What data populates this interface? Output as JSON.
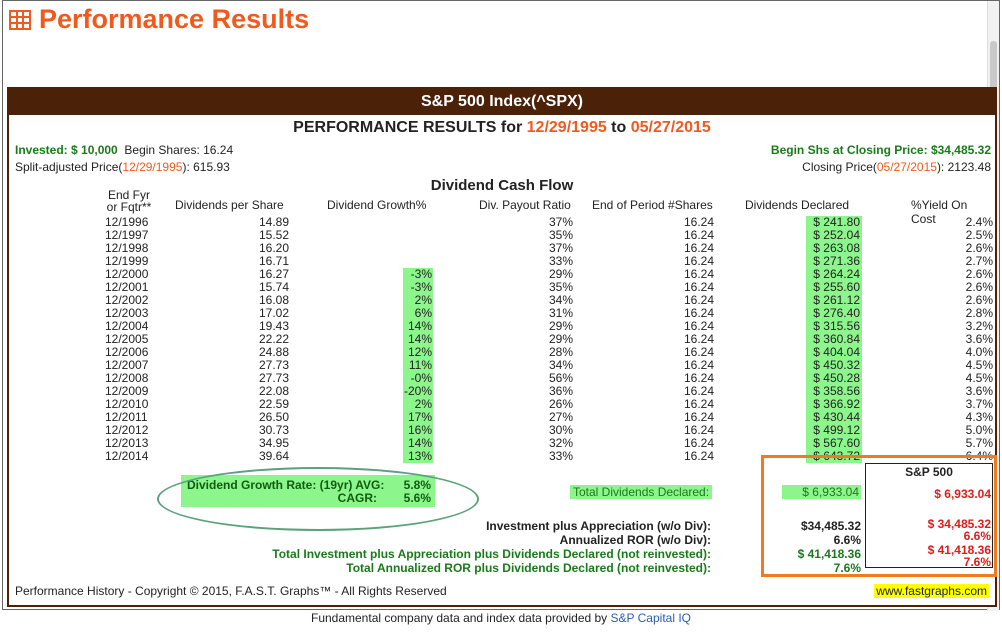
{
  "page": {
    "title": "Performance Results",
    "footer_note_prefix": "Fundamental company data and index data provided by ",
    "footer_note_link": "S&P Capital IQ"
  },
  "report": {
    "banner": "S&P 500 Index(^SPX)",
    "perf_title_prefix": "PERFORMANCE RESULTS for ",
    "start_date": "12/29/1995",
    "perf_title_mid": " to ",
    "end_date": "05/27/2015",
    "invested_label": "Invested: $ 10,000",
    "begin_shares_label": "Begin Shares: 16.24",
    "split_price_prefix": "Split-adjusted Price(",
    "split_price_date": "12/29/1995",
    "split_price_suffix": "): ",
    "split_price_value": "615.93",
    "begin_shs_closing": "Begin Shs at Closing Price: $34,485.32",
    "closing_price_prefix": "Closing Price(",
    "closing_price_date": "05/27/2015",
    "closing_price_suffix": "): ",
    "closing_price_value": "2123.48",
    "section_title": "Dividend Cash Flow",
    "columns": {
      "fyr": "End Fyr",
      "fqtr": "or Fqtr**",
      "dps": "Dividends per Share",
      "dg": "Dividend Growth%",
      "dpr": "Div. Payout Ratio",
      "eps": "End of Period #Shares",
      "dd": "Dividends Declared",
      "yoc": "%Yield On Cost"
    },
    "rows": [
      {
        "year": "12/1996",
        "dps": "14.89",
        "dg": "",
        "dpr": "37%",
        "eps": "16.24",
        "dd": "$ 241.80",
        "yoc": "2.4%"
      },
      {
        "year": "12/1997",
        "dps": "15.52",
        "dg": "",
        "dpr": "35%",
        "eps": "16.24",
        "dd": "$ 252.04",
        "yoc": "2.5%"
      },
      {
        "year": "12/1998",
        "dps": "16.20",
        "dg": "",
        "dpr": "37%",
        "eps": "16.24",
        "dd": "$ 263.08",
        "yoc": "2.6%"
      },
      {
        "year": "12/1999",
        "dps": "16.71",
        "dg": "",
        "dpr": "33%",
        "eps": "16.24",
        "dd": "$ 271.36",
        "yoc": "2.7%"
      },
      {
        "year": "12/2000",
        "dps": "16.27",
        "dg": "-3%",
        "dpr": "29%",
        "eps": "16.24",
        "dd": "$ 264.24",
        "yoc": "2.6%"
      },
      {
        "year": "12/2001",
        "dps": "15.74",
        "dg": "-3%",
        "dpr": "35%",
        "eps": "16.24",
        "dd": "$ 255.60",
        "yoc": "2.6%"
      },
      {
        "year": "12/2002",
        "dps": "16.08",
        "dg": "2%",
        "dpr": "34%",
        "eps": "16.24",
        "dd": "$ 261.12",
        "yoc": "2.6%"
      },
      {
        "year": "12/2003",
        "dps": "17.02",
        "dg": "6%",
        "dpr": "31%",
        "eps": "16.24",
        "dd": "$ 276.40",
        "yoc": "2.8%"
      },
      {
        "year": "12/2004",
        "dps": "19.43",
        "dg": "14%",
        "dpr": "29%",
        "eps": "16.24",
        "dd": "$ 315.56",
        "yoc": "3.2%"
      },
      {
        "year": "12/2005",
        "dps": "22.22",
        "dg": "14%",
        "dpr": "29%",
        "eps": "16.24",
        "dd": "$ 360.84",
        "yoc": "3.6%"
      },
      {
        "year": "12/2006",
        "dps": "24.88",
        "dg": "12%",
        "dpr": "28%",
        "eps": "16.24",
        "dd": "$ 404.04",
        "yoc": "4.0%"
      },
      {
        "year": "12/2007",
        "dps": "27.73",
        "dg": "11%",
        "dpr": "34%",
        "eps": "16.24",
        "dd": "$ 450.32",
        "yoc": "4.5%"
      },
      {
        "year": "12/2008",
        "dps": "27.73",
        "dg": "-0%",
        "dpr": "56%",
        "eps": "16.24",
        "dd": "$ 450.28",
        "yoc": "4.5%"
      },
      {
        "year": "12/2009",
        "dps": "22.08",
        "dg": "-20%",
        "dpr": "36%",
        "eps": "16.24",
        "dd": "$ 358.56",
        "yoc": "3.6%"
      },
      {
        "year": "12/2010",
        "dps": "22.59",
        "dg": "2%",
        "dpr": "26%",
        "eps": "16.24",
        "dd": "$ 366.92",
        "yoc": "3.7%"
      },
      {
        "year": "12/2011",
        "dps": "26.50",
        "dg": "17%",
        "dpr": "27%",
        "eps": "16.24",
        "dd": "$ 430.44",
        "yoc": "4.3%"
      },
      {
        "year": "12/2012",
        "dps": "30.73",
        "dg": "16%",
        "dpr": "30%",
        "eps": "16.24",
        "dd": "$ 499.12",
        "yoc": "5.0%"
      },
      {
        "year": "12/2013",
        "dps": "34.95",
        "dg": "14%",
        "dpr": "32%",
        "eps": "16.24",
        "dd": "$ 567.60",
        "yoc": "5.7%"
      },
      {
        "year": "12/2014",
        "dps": "39.64",
        "dg": "13%",
        "dpr": "33%",
        "eps": "16.24",
        "dd": "$ 643.72",
        "yoc": "6.4%"
      }
    ],
    "growth": {
      "avg_label": "Dividend Growth Rate: (19yr) AVG:",
      "avg_value": "5.8%",
      "cagr_label": "CAGR:",
      "cagr_value": "5.6%"
    },
    "total_dividends_label": "Total Dividends Declared:",
    "total_dividends_value": "$ 6,933.04",
    "sp_box_title": "S&P 500",
    "sp_total_dividends": "$ 6,933.04",
    "summary": [
      {
        "label": "Investment plus Appreciation (w/o Div):",
        "value": "$34,485.32",
        "sp": "$ 34,485.32",
        "green": false
      },
      {
        "label": "Annualized ROR (w/o Div):",
        "value": "6.6%",
        "sp": "6.6%",
        "green": false
      },
      {
        "label": "Total Investment plus Appreciation plus Dividends Declared (not reinvested):",
        "value": "$ 41,418.36",
        "sp": "$ 41,418.36",
        "green": true
      },
      {
        "label": "Total Annualized ROR plus Dividends Declared (not reinvested):",
        "value": "7.6%",
        "sp": "7.6%",
        "green": true
      }
    ],
    "copyright": "Performance History - Copyright © 2015, F.A.S.T. Graphs™ - All Rights Reserved",
    "site": "www.fastgraphs.com"
  },
  "colors": {
    "accent": "#f05a1e",
    "banner_bg": "#4b2108",
    "highlight_green": "#8cf58c",
    "text_green": "#1a7a1a",
    "text_red": "#e01b1b"
  }
}
